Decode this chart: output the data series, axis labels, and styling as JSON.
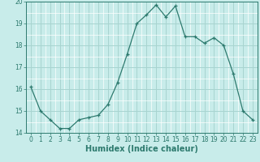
{
  "x": [
    0,
    1,
    2,
    3,
    4,
    5,
    6,
    7,
    8,
    9,
    10,
    11,
    12,
    13,
    14,
    15,
    16,
    17,
    18,
    19,
    20,
    21,
    22,
    23
  ],
  "y": [
    16.1,
    15.0,
    14.6,
    14.2,
    14.2,
    14.6,
    14.7,
    14.8,
    15.3,
    16.3,
    17.6,
    19.0,
    19.4,
    19.85,
    19.3,
    19.8,
    18.4,
    18.4,
    18.1,
    18.35,
    18.0,
    16.7,
    15.0,
    14.6
  ],
  "line_color": "#2d7a6e",
  "marker": "+",
  "marker_size": 3,
  "bg_color": "#c8ecea",
  "grid_minor_color": "#ffffff",
  "grid_major_color": "#a8d4d0",
  "xlabel": "Humidex (Indice chaleur)",
  "xlim": [
    -0.5,
    23.5
  ],
  "ylim": [
    14.0,
    20.0
  ],
  "yticks": [
    14,
    15,
    16,
    17,
    18,
    19,
    20
  ],
  "xticks": [
    0,
    1,
    2,
    3,
    4,
    5,
    6,
    7,
    8,
    9,
    10,
    11,
    12,
    13,
    14,
    15,
    16,
    17,
    18,
    19,
    20,
    21,
    22,
    23
  ],
  "tick_fontsize": 5.5,
  "label_fontsize": 7.0,
  "tick_color": "#2d7a6e",
  "axis_color": "#2d7a6e"
}
